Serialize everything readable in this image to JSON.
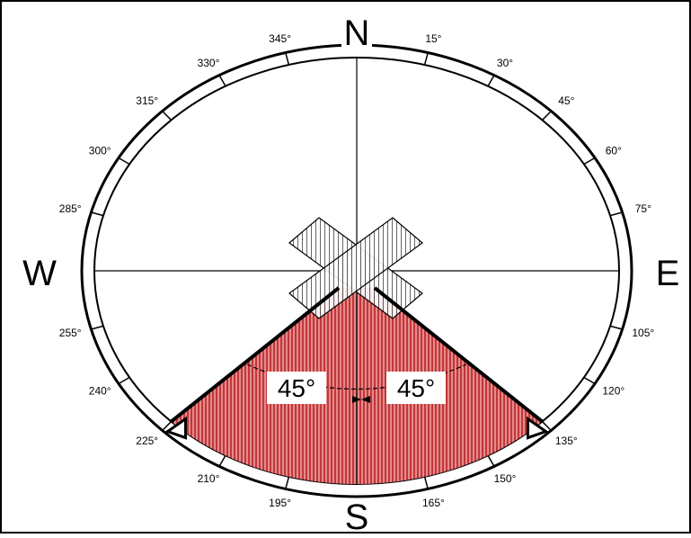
{
  "diagram": {
    "cardinals": {
      "north": "N",
      "south": "S",
      "east": "E",
      "west": "W"
    },
    "bearings": [
      {
        "deg": 15,
        "label": "15°"
      },
      {
        "deg": 30,
        "label": "30°"
      },
      {
        "deg": 45,
        "label": "45°"
      },
      {
        "deg": 60,
        "label": "60°"
      },
      {
        "deg": 75,
        "label": "75°"
      },
      {
        "deg": 105,
        "label": "105°"
      },
      {
        "deg": 120,
        "label": "120°"
      },
      {
        "deg": 135,
        "label": "135°"
      },
      {
        "deg": 150,
        "label": "150°"
      },
      {
        "deg": 165,
        "label": "165°"
      },
      {
        "deg": 195,
        "label": "195°"
      },
      {
        "deg": 210,
        "label": "210°"
      },
      {
        "deg": 225,
        "label": "225°"
      },
      {
        "deg": 240,
        "label": "240°"
      },
      {
        "deg": 255,
        "label": "255°"
      },
      {
        "deg": 285,
        "label": "285°"
      },
      {
        "deg": 300,
        "label": "300°"
      },
      {
        "deg": 315,
        "label": "315°"
      },
      {
        "deg": 330,
        "label": "330°"
      },
      {
        "deg": 345,
        "label": "345°"
      }
    ],
    "sector": {
      "start_bearing": 135,
      "end_bearing": 225,
      "left_angle_label": "45°",
      "right_angle_label": "45°"
    },
    "colors": {
      "sector_fill": "#e48c8c",
      "sector_hatch": "#b31217",
      "ink": "#000000"
    }
  }
}
